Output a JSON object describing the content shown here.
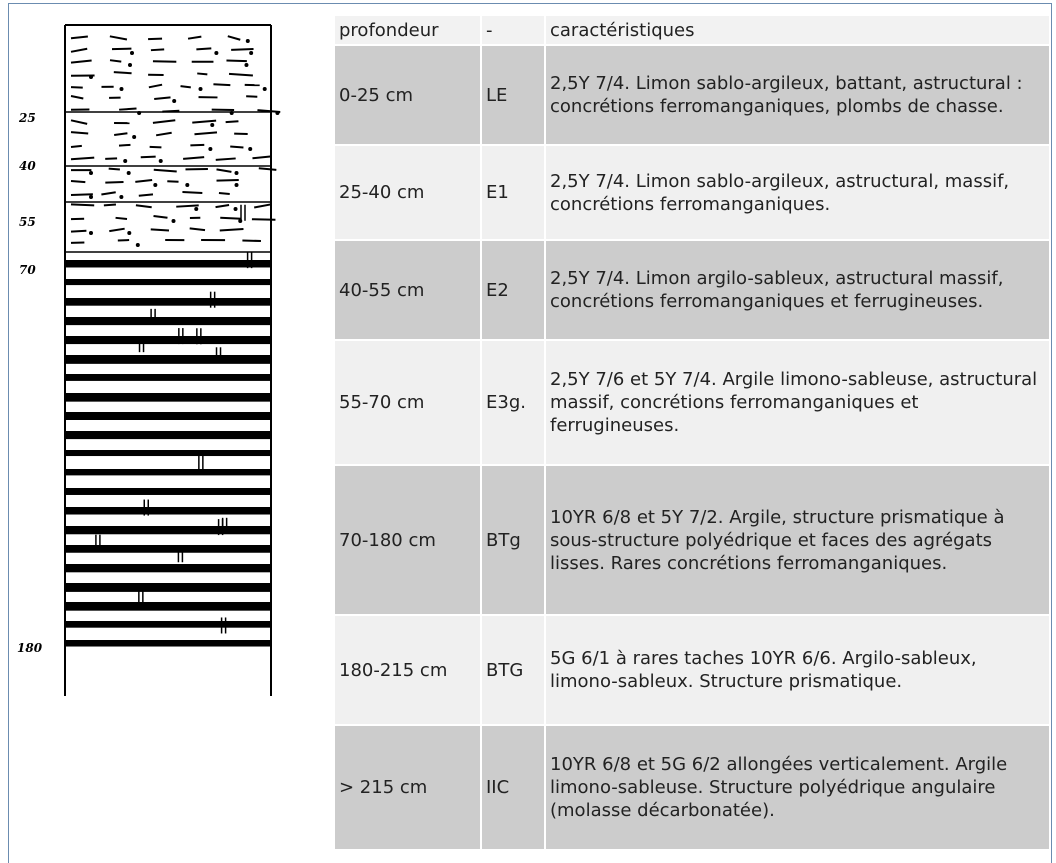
{
  "profile": {
    "depth_labels": [
      "25",
      "40",
      "55",
      "70",
      "180"
    ]
  },
  "table": {
    "header": [
      "profondeur",
      "-",
      "caractéristiques"
    ],
    "rows": [
      [
        "0-25 cm",
        "LE",
        "2,5Y 7/4. Limon sablo-argileux, battant, astructural : concrétions ferromanganiques, plombs de chasse."
      ],
      [
        "25-40 cm",
        "E1",
        "2,5Y 7/4. Limon sablo-argileux, astructural, massif, concrétions ferromanganiques."
      ],
      [
        "40-55 cm",
        "E2",
        "2,5Y 7/4. Limon argilo-sableux, astructural massif, concrétions ferromanganiques et ferrugineuses."
      ],
      [
        "55-70 cm",
        "E3g.",
        "2,5Y 7/6 et 5Y 7/4. Argile limono-sableuse, astructural massif, concrétions ferromanganiques et ferrugineuses."
      ],
      [
        "70-180 cm",
        "BTg",
        "10YR 6/8 et 5Y 7/2. Argile, structure prismatique à sous-structure polyédrique et faces des agrégats lisses. Rares concrétions ferromanganiques."
      ],
      [
        "180-215 cm",
        "BTG",
        "5G 6/1 à rares taches 10YR 6/6. Argilo-sableux, limono-sableux. Structure prismatique."
      ],
      [
        "> 215 cm",
        "IIC",
        "10YR 6/8 et 5G 6/2 allongées verticalement. Argile limono-sableuse. Structure polyédrique angulaire (molasse décarbonatée)."
      ]
    ]
  }
}
